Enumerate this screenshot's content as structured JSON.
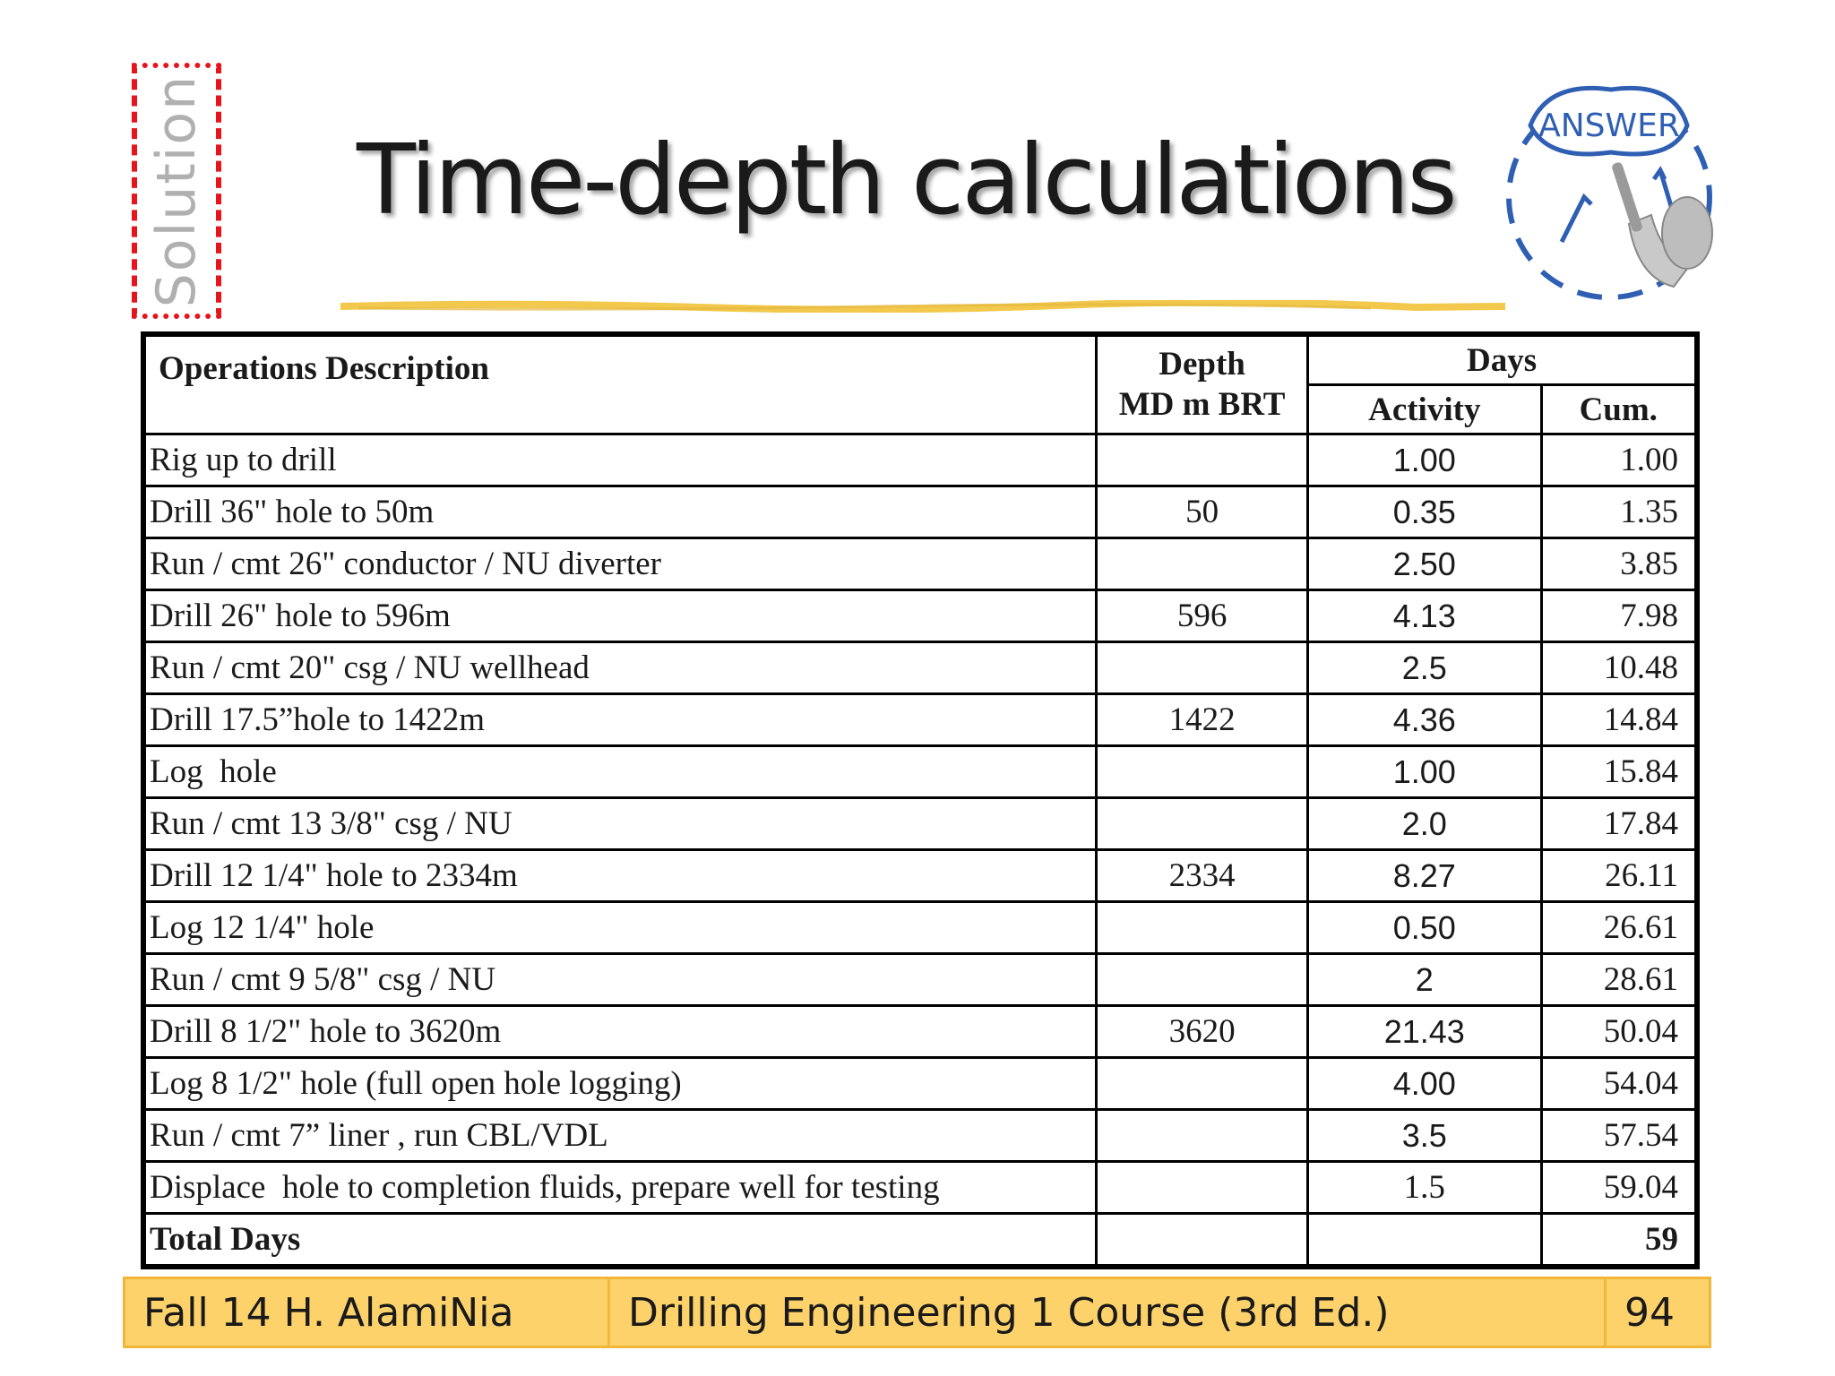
{
  "slide": {
    "title": "Time-depth calculations",
    "solution_label": "Solution",
    "answer_badge_text": "ANSWER"
  },
  "table": {
    "headers": {
      "description": "Operations Description",
      "depth_line1": "Depth",
      "depth_line2": "MD m BRT",
      "days": "Days",
      "activity": "Activity",
      "cum": "Cum."
    },
    "rows": [
      {
        "description": "Rig up to drill",
        "depth": "",
        "activity": "1.00",
        "cum": "1.00"
      },
      {
        "description": "Drill 36\" hole to 50m",
        "depth": "50",
        "activity": "0.35",
        "cum": "1.35"
      },
      {
        "description": "Run / cmt 26\" conductor / NU diverter",
        "depth": "",
        "activity": "2.50",
        "cum": "3.85"
      },
      {
        "description": "Drill 26\" hole to 596m",
        "depth": "596",
        "activity": "4.13",
        "cum": "7.98"
      },
      {
        "description": "Run / cmt 20\" csg / NU wellhead",
        "depth": "",
        "activity": "2.5",
        "cum": "10.48"
      },
      {
        "description": "Drill 17.5”hole to 1422m",
        "depth": "1422",
        "activity": "4.36",
        "cum": "14.84"
      },
      {
        "description": "Log  hole",
        "depth": "",
        "activity": "1.00",
        "cum": "15.84"
      },
      {
        "description": "Run / cmt 13 3/8\" csg / NU",
        "depth": "",
        "activity": "2.0",
        "cum": "17.84"
      },
      {
        "description": "Drill 12 1/4\" hole to 2334m",
        "depth": "2334",
        "activity": "8.27",
        "cum": "26.11"
      },
      {
        "description": "Log 12 1/4\" hole",
        "depth": "",
        "activity": "0.50",
        "cum": "26.61"
      },
      {
        "description": "Run / cmt 9 5/8\" csg / NU",
        "depth": "",
        "activity": "2",
        "cum": "28.61"
      },
      {
        "description": "Drill 8 1/2\" hole to 3620m",
        "depth": "3620",
        "activity": "21.43",
        "cum": "50.04"
      },
      {
        "description": "Log 8 1/2\" hole (full open hole logging)",
        "depth": "",
        "activity": "4.00",
        "cum": "54.04"
      },
      {
        "description": "Run / cmt 7” liner , run CBL/VDL",
        "depth": "",
        "activity": "3.5",
        "cum": "57.54"
      },
      {
        "description": "Displace  hole to completion fluids, prepare well for testing",
        "depth": "",
        "activity": "1.5",
        "cum": "59.04"
      }
    ],
    "total": {
      "description": "Total Days",
      "depth": "",
      "activity": "",
      "cum": "59"
    }
  },
  "footer": {
    "author": "Fall 14 H. AlamiNia",
    "course": "Drilling Engineering 1 Course (3rd Ed.)",
    "page_number": "94"
  },
  "colors": {
    "solution_border": "#e8141b",
    "footer_fill": "#fdd26b",
    "footer_border": "#f0b73a",
    "title_rule": "#f2c94c",
    "badge_blue": "#2f5fb3"
  }
}
